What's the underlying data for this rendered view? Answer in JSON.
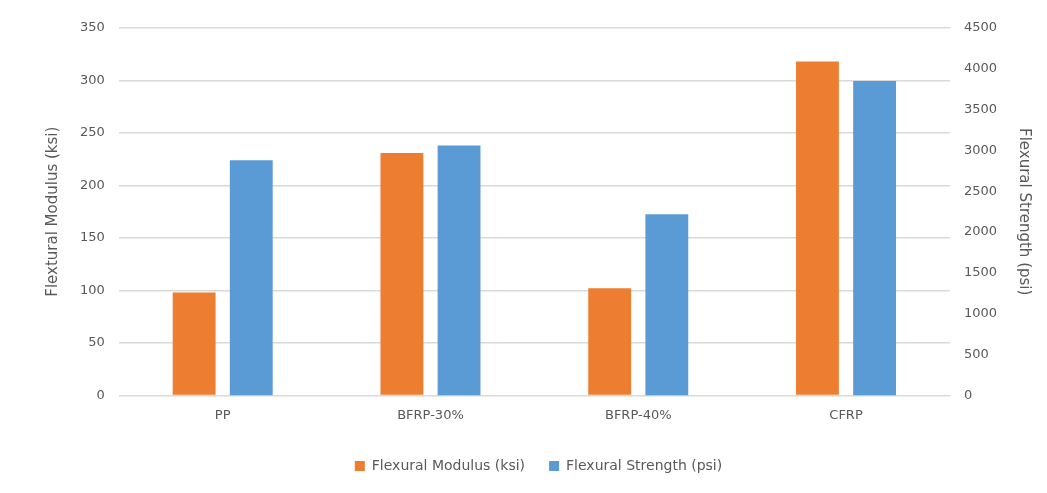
{
  "chart_data": {
    "type": "bar",
    "categories": [
      "PP",
      "BFRP-30%",
      "BFRP-40%",
      "CFRP"
    ],
    "series": [
      {
        "name": "Flexural Modulus (ksi)",
        "color": "#ed7d31",
        "values": [
          98,
          231,
          102,
          318
        ]
      },
      {
        "name": "Flexural Strength (psi)",
        "color": "#5b9bd5",
        "values": [
          2880,
          3060,
          2220,
          3850
        ],
        "axis": "y2"
      }
    ],
    "ylabel": "Flextural Modulus (ksi)",
    "y2label": "Flexural Strength (psi)",
    "ylim": [
      0,
      350
    ],
    "yticks": [
      0,
      50,
      100,
      150,
      200,
      250,
      300,
      350
    ],
    "y2lim": [
      0,
      4500
    ],
    "y2ticks": [
      0,
      500,
      1000,
      1500,
      2000,
      2500,
      3000,
      3500,
      4000,
      4500
    ],
    "grid": "y",
    "legend": "bottom"
  }
}
